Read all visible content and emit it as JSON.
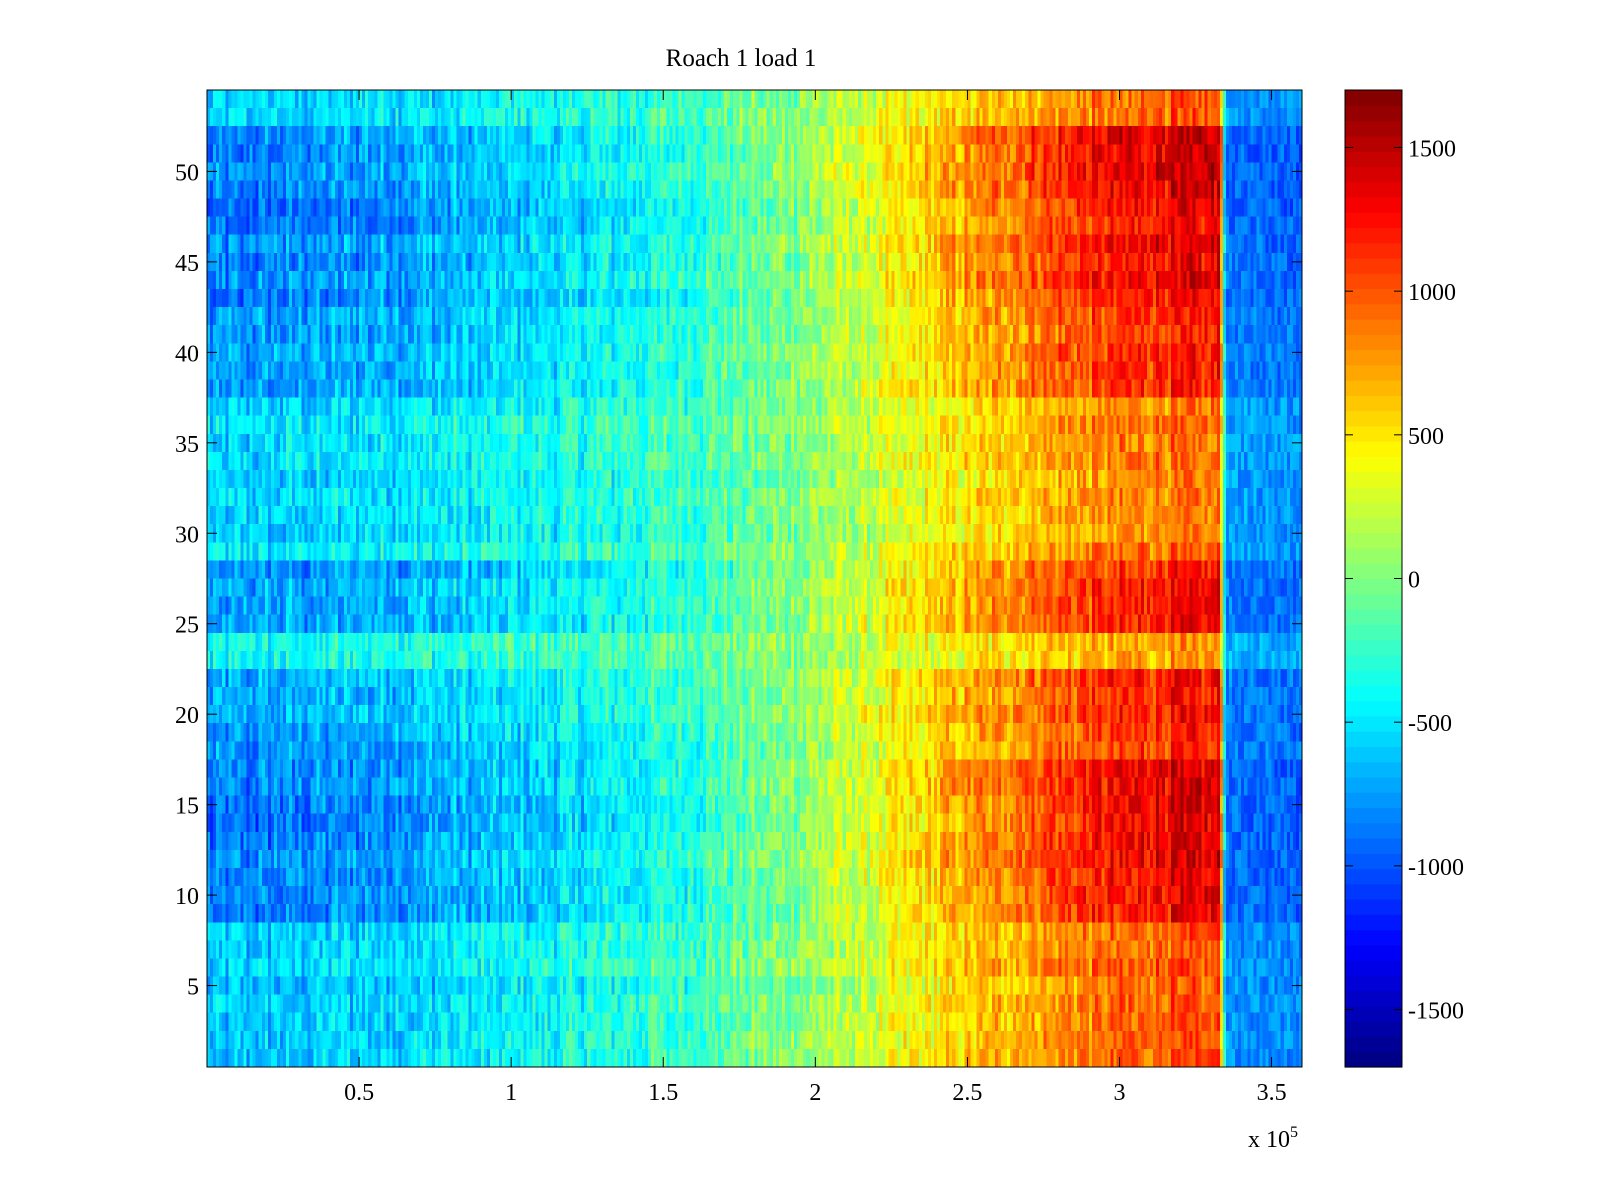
{
  "chart_data": {
    "type": "heatmap",
    "title": "Roach 1 load 1",
    "xlabel": "",
    "ylabel": "",
    "x_scale_label": {
      "prefix": "x 10",
      "exponent": "5"
    },
    "xlim": [
      0,
      3.6
    ],
    "ylim": [
      0.5,
      54.5
    ],
    "x_ticks": [
      0.5,
      1,
      1.5,
      2,
      2.5,
      3,
      3.5
    ],
    "x_tick_labels": [
      "0.5",
      "1",
      "1.5",
      "2",
      "2.5",
      "3",
      "3.5"
    ],
    "y_ticks": [
      5,
      10,
      15,
      20,
      25,
      30,
      35,
      40,
      45,
      50
    ],
    "y_tick_labels": [
      "5",
      "10",
      "15",
      "20",
      "25",
      "30",
      "35",
      "40",
      "45",
      "50"
    ],
    "rows": 54,
    "columns": 360,
    "colormap": "jet",
    "colorbar": {
      "clim": [
        -1700,
        1700
      ],
      "ticks": [
        -1500,
        -1000,
        -500,
        0,
        500,
        1000,
        1500
      ],
      "tick_labels": [
        "-1500",
        "-1000",
        "-500",
        "0",
        "500",
        "1000",
        "1500"
      ]
    },
    "value_profile": {
      "description": "values rise roughly linearly from left to right, peak near x=3.3e5, then drop sharply",
      "x_control_points": [
        0,
        0.3,
        0.8,
        1.2,
        1.6,
        1.9,
        2.2,
        2.5,
        2.8,
        3.1,
        3.33,
        3.35,
        3.6
      ],
      "mean_values": [
        -650,
        -600,
        -500,
        -380,
        -200,
        0,
        250,
        550,
        800,
        950,
        1000,
        -700,
        -750
      ],
      "band_x_range": [
        3.35,
        3.6
      ],
      "band_mean_values": [
        -700,
        -750
      ],
      "row_amplitude_by_band": [
        {
          "rows": [
            1,
            8
          ],
          "amp": 1.0
        },
        {
          "rows": [
            9,
            12
          ],
          "amp": 1.35
        },
        {
          "rows": [
            13,
            17
          ],
          "amp": 1.4
        },
        {
          "rows": [
            18,
            22
          ],
          "amp": 1.2
        },
        {
          "rows": [
            23,
            24
          ],
          "amp": 0.7
        },
        {
          "rows": [
            25,
            28
          ],
          "amp": 1.25
        },
        {
          "rows": [
            29,
            37
          ],
          "amp": 0.9
        },
        {
          "rows": [
            38,
            42
          ],
          "amp": 1.2
        },
        {
          "rows": [
            43,
            47
          ],
          "amp": 1.35
        },
        {
          "rows": [
            48,
            52
          ],
          "amp": 1.4
        },
        {
          "rows": [
            53,
            54
          ],
          "amp": 0.95
        }
      ]
    }
  }
}
